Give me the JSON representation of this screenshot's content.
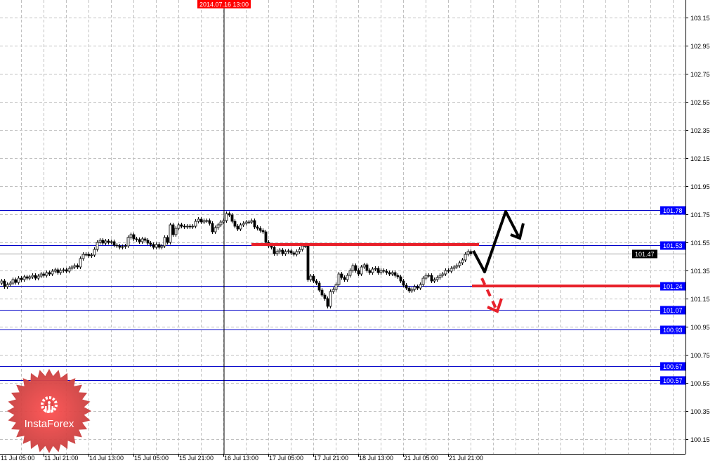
{
  "colors": {
    "background": "#ffffff",
    "grid": "#c0c0c0",
    "level_line": "#0000c8",
    "level_label_bg": "#0000ff",
    "bid_line": "#a0a0a0",
    "bid_label_bg": "#000000",
    "support_resistance": "#e8202a",
    "forecast_main": "#000000",
    "forecast_alt": "#e8202a",
    "crosshair_label_bg": "#ff0000",
    "logo": "#e84a4a"
  },
  "logo": {
    "text": "InstaForex",
    "icon": "gear-person-icon"
  },
  "crosshair": {
    "time_label": "2014.07.16 13:00"
  },
  "chart_data": {
    "type": "candlestick",
    "timeframe_hours": 1,
    "ylim": [
      100.12,
      103.2
    ],
    "y_ticks": [
      103.15,
      102.95,
      102.75,
      102.55,
      102.35,
      102.15,
      101.95,
      101.75,
      101.55,
      101.35,
      101.15,
      100.95,
      100.75,
      100.55,
      100.35,
      100.15
    ],
    "x_ticks": [
      "11 Jul 05:00",
      "11 Jul 21:00",
      "14 Jul 13:00",
      "15 Jul 05:00",
      "15 Jul 21:00",
      "16 Jul 13:00",
      "17 Jul 05:00",
      "17 Jul 21:00",
      "18 Jul 13:00",
      "21 Jul 05:00",
      "21 Jul 21:00"
    ],
    "grid": true,
    "first_open": 101.26,
    "close": [
      101.275,
      101.235,
      101.25,
      101.26,
      101.285,
      101.265,
      101.295,
      101.285,
      101.305,
      101.295,
      101.305,
      101.315,
      101.295,
      101.31,
      101.325,
      101.315,
      101.335,
      101.325,
      101.345,
      101.355,
      101.335,
      101.35,
      101.355,
      101.345,
      101.365,
      101.375,
      101.385,
      101.375,
      101.435,
      101.465,
      101.465,
      101.455,
      101.46,
      101.5,
      101.55,
      101.565,
      101.545,
      101.56,
      101.55,
      101.555,
      101.53,
      101.525,
      101.515,
      101.52,
      101.525,
      101.585,
      101.605,
      101.575,
      101.57,
      101.555,
      101.575,
      101.565,
      101.545,
      101.535,
      101.515,
      101.535,
      101.515,
      101.525,
      101.585,
      101.55,
      101.675,
      101.605,
      101.65,
      101.675,
      101.665,
      101.66,
      101.665,
      101.66,
      101.665,
      101.7,
      101.715,
      101.695,
      101.705,
      101.705,
      101.685,
      101.625,
      101.655,
      101.675,
      101.695,
      101.705,
      101.755,
      101.745,
      101.7,
      101.665,
      101.645,
      101.675,
      101.685,
      101.695,
      101.695,
      101.705,
      101.66,
      101.65,
      101.635,
      101.625,
      101.55,
      101.525,
      101.515,
      101.47,
      101.485,
      101.495,
      101.47,
      101.485,
      101.49,
      101.475,
      101.465,
      101.485,
      101.5,
      101.525,
      101.525,
      101.285,
      101.31,
      101.275,
      101.26,
      101.21,
      101.175,
      101.15,
      101.095,
      101.2,
      101.215,
      101.25,
      101.325,
      101.3,
      101.285,
      101.315,
      101.35,
      101.385,
      101.35,
      101.325,
      101.375,
      101.39,
      101.35,
      101.335,
      101.36,
      101.365,
      101.335,
      101.35,
      101.345,
      101.335,
      101.325,
      101.335,
      101.315,
      101.305,
      101.275,
      101.245,
      101.225,
      101.205,
      101.215,
      101.235,
      101.225,
      101.25,
      101.295,
      101.315,
      101.315,
      101.275,
      101.285,
      101.3,
      101.315,
      101.325,
      101.35,
      101.345,
      101.365,
      101.375,
      101.385,
      101.405,
      101.425,
      101.465,
      101.485,
      101.47
    ],
    "levels": [
      {
        "label": "101.78",
        "price": 101.78
      },
      {
        "label": "101.53",
        "price": 101.53
      },
      {
        "label": "101.24",
        "price": 101.24
      },
      {
        "label": "101.07",
        "price": 101.07
      },
      {
        "label": "100.93",
        "price": 100.93
      },
      {
        "label": "100.67",
        "price": 100.67
      },
      {
        "label": "100.57",
        "price": 100.57
      }
    ],
    "bid": {
      "label": "101.47",
      "price": 101.47
    },
    "resistance_price": 101.535,
    "support_price": 101.24
  }
}
